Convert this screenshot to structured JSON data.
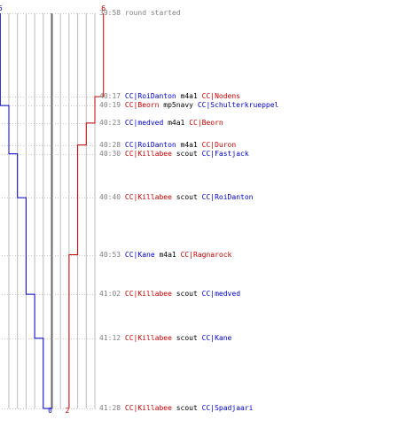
{
  "colors": {
    "blue": "#0000cc",
    "red": "#cc0000",
    "grid": "#bbbbbb",
    "center": "#666666",
    "gray_text": "#808080"
  },
  "timeline": {
    "start_seconds": 2398,
    "end_seconds": 2488,
    "lanes": 11,
    "blue_team": {
      "start_score": 6,
      "end_score": 0
    },
    "red_team": {
      "start_score": 6,
      "end_score": 2
    }
  },
  "events": [
    {
      "time": "39:58",
      "message": "round started"
    },
    {
      "time": "40:17",
      "killer": "CC|RoiDanton",
      "killer_team": "blue",
      "weapon": "m4a1",
      "victim": "CC|Nodens",
      "victim_team": "red"
    },
    {
      "time": "40:19",
      "killer": "CC|Beorn",
      "killer_team": "red",
      "weapon": "mp5navy",
      "victim": "CC|Schulterkrueppel",
      "victim_team": "blue"
    },
    {
      "time": "40:23",
      "killer": "CC|medved",
      "killer_team": "blue",
      "weapon": "m4a1",
      "victim": "CC|Beorn",
      "victim_team": "red"
    },
    {
      "time": "40:28",
      "killer": "CC|RoiDanton",
      "killer_team": "blue",
      "weapon": "m4a1",
      "victim": "CC|Duron",
      "victim_team": "red"
    },
    {
      "time": "40:30",
      "killer": "CC|Killabee",
      "killer_team": "red",
      "weapon": "scout",
      "victim": "CC|Fastjack",
      "victim_team": "blue"
    },
    {
      "time": "40:40",
      "killer": "CC|Killabee",
      "killer_team": "red",
      "weapon": "scout",
      "victim": "CC|RoiDanton",
      "victim_team": "blue"
    },
    {
      "time": "40:53",
      "killer": "CC|Kane",
      "killer_team": "blue",
      "weapon": "m4a1",
      "victim": "CC|Ragnarock",
      "victim_team": "red"
    },
    {
      "time": "41:02",
      "killer": "CC|Killabee",
      "killer_team": "red",
      "weapon": "scout",
      "victim": "CC|medved",
      "victim_team": "blue"
    },
    {
      "time": "41:12",
      "killer": "CC|Killabee",
      "killer_team": "red",
      "weapon": "scout",
      "victim": "CC|Kane",
      "victim_team": "blue"
    },
    {
      "time": "41:28",
      "killer": "CC|Killabee",
      "killer_team": "red",
      "weapon": "scout",
      "victim": "CC|Spadjaari",
      "victim_team": "blue"
    }
  ]
}
